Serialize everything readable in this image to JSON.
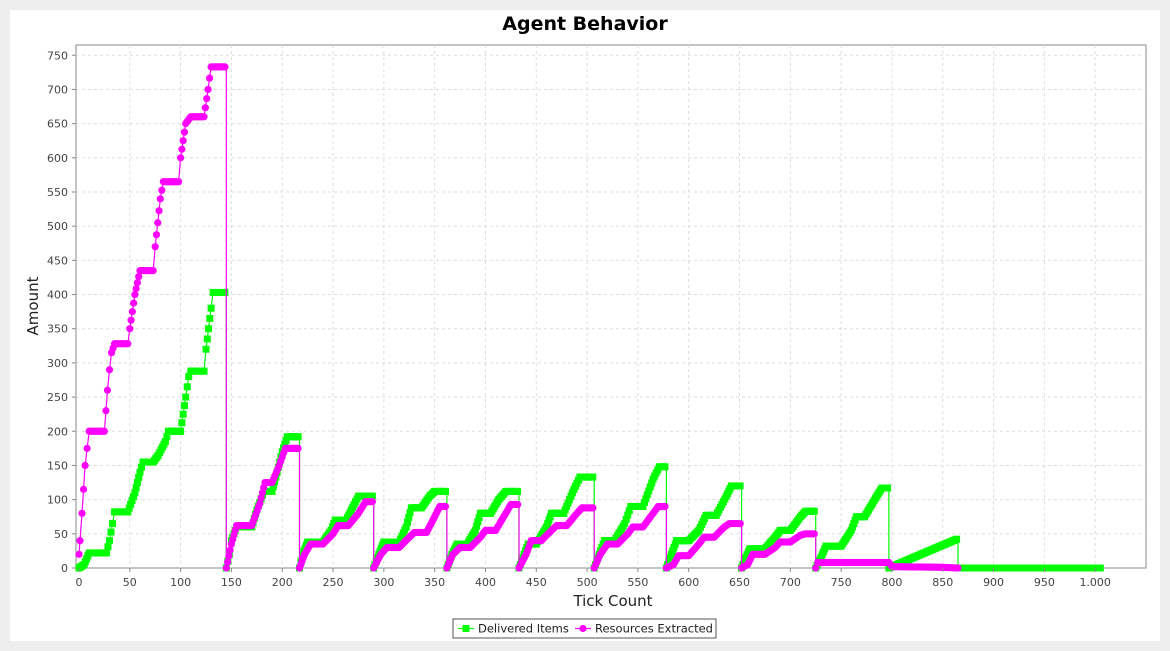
{
  "chart_data": {
    "type": "line",
    "title": "Agent Behavior",
    "xlabel": "Tick Count",
    "ylabel": "Amount",
    "xlim": [
      0,
      1050
    ],
    "ylim": [
      0,
      765
    ],
    "xticks": [
      0,
      50,
      100,
      150,
      200,
      250,
      300,
      350,
      400,
      450,
      500,
      550,
      600,
      650,
      700,
      750,
      800,
      850,
      900,
      950,
      1000
    ],
    "xtick_labels": [
      "0",
      "50",
      "100",
      "150",
      "200",
      "250",
      "300",
      "350",
      "400",
      "450",
      "500",
      "550",
      "600",
      "650",
      "700",
      "750",
      "800",
      "850",
      "900",
      "950",
      "1.000"
    ],
    "yticks": [
      0,
      50,
      100,
      150,
      200,
      250,
      300,
      350,
      400,
      450,
      500,
      550,
      600,
      650,
      700,
      750
    ],
    "grid": true,
    "legend": "bottom-center",
    "series": [
      {
        "name": "Delivered Items",
        "color": "#00ff00",
        "marker": "square",
        "points": [
          [
            0,
            0
          ],
          [
            5,
            5
          ],
          [
            10,
            22
          ],
          [
            20,
            22
          ],
          [
            27,
            22
          ],
          [
            30,
            40
          ],
          [
            33,
            65
          ],
          [
            35,
            82
          ],
          [
            48,
            82
          ],
          [
            55,
            110
          ],
          [
            60,
            140
          ],
          [
            63,
            155
          ],
          [
            73,
            155
          ],
          [
            78,
            165
          ],
          [
            85,
            185
          ],
          [
            88,
            200
          ],
          [
            100,
            200
          ],
          [
            105,
            250
          ],
          [
            108,
            280
          ],
          [
            110,
            288
          ],
          [
            123,
            288
          ],
          [
            125,
            320
          ],
          [
            130,
            380
          ],
          [
            132,
            403
          ],
          [
            145,
            403
          ],
          [
            145,
            0
          ],
          [
            148,
            20
          ],
          [
            150,
            40
          ],
          [
            155,
            60
          ],
          [
            170,
            60
          ],
          [
            175,
            85
          ],
          [
            182,
            112
          ],
          [
            190,
            112
          ],
          [
            195,
            140
          ],
          [
            200,
            170
          ],
          [
            205,
            192
          ],
          [
            217,
            192
          ],
          [
            217,
            0
          ],
          [
            220,
            20
          ],
          [
            225,
            38
          ],
          [
            240,
            38
          ],
          [
            248,
            55
          ],
          [
            252,
            70
          ],
          [
            263,
            70
          ],
          [
            268,
            85
          ],
          [
            275,
            105
          ],
          [
            290,
            105
          ],
          [
            290,
            0
          ],
          [
            295,
            20
          ],
          [
            300,
            38
          ],
          [
            315,
            38
          ],
          [
            322,
            60
          ],
          [
            327,
            88
          ],
          [
            337,
            88
          ],
          [
            345,
            105
          ],
          [
            350,
            112
          ],
          [
            362,
            112
          ],
          [
            362,
            0
          ],
          [
            367,
            20
          ],
          [
            372,
            35
          ],
          [
            382,
            35
          ],
          [
            390,
            55
          ],
          [
            395,
            80
          ],
          [
            405,
            80
          ],
          [
            413,
            100
          ],
          [
            420,
            112
          ],
          [
            433,
            112
          ],
          [
            433,
            0
          ],
          [
            438,
            20
          ],
          [
            442,
            35
          ],
          [
            450,
            35
          ],
          [
            460,
            60
          ],
          [
            465,
            80
          ],
          [
            477,
            80
          ],
          [
            487,
            115
          ],
          [
            493,
            133
          ],
          [
            507,
            133
          ],
          [
            507,
            0
          ],
          [
            512,
            20
          ],
          [
            517,
            40
          ],
          [
            527,
            40
          ],
          [
            537,
            65
          ],
          [
            543,
            90
          ],
          [
            555,
            90
          ],
          [
            565,
            130
          ],
          [
            571,
            148
          ],
          [
            578,
            148
          ],
          [
            578,
            0
          ],
          [
            583,
            20
          ],
          [
            588,
            40
          ],
          [
            600,
            40
          ],
          [
            610,
            55
          ],
          [
            617,
            77
          ],
          [
            627,
            77
          ],
          [
            637,
            105
          ],
          [
            642,
            120
          ],
          [
            652,
            120
          ],
          [
            652,
            0
          ],
          [
            656,
            15
          ],
          [
            660,
            28
          ],
          [
            675,
            28
          ],
          [
            685,
            45
          ],
          [
            690,
            55
          ],
          [
            700,
            55
          ],
          [
            710,
            75
          ],
          [
            715,
            83
          ],
          [
            725,
            83
          ],
          [
            725,
            0
          ],
          [
            730,
            15
          ],
          [
            735,
            32
          ],
          [
            750,
            32
          ],
          [
            760,
            55
          ],
          [
            765,
            75
          ],
          [
            773,
            75
          ],
          [
            785,
            105
          ],
          [
            790,
            117
          ],
          [
            797,
            117
          ],
          [
            797,
            0
          ],
          [
            865,
            43
          ],
          [
            865,
            0
          ],
          [
            1005,
            0
          ]
        ]
      },
      {
        "name": "Resources Extracted",
        "color": "#ff00ff",
        "marker": "circle",
        "points": [
          [
            0,
            20
          ],
          [
            1,
            40
          ],
          [
            3,
            80
          ],
          [
            6,
            150
          ],
          [
            8,
            175
          ],
          [
            10,
            200
          ],
          [
            25,
            200
          ],
          [
            28,
            260
          ],
          [
            30,
            290
          ],
          [
            32,
            315
          ],
          [
            35,
            328
          ],
          [
            48,
            328
          ],
          [
            50,
            350
          ],
          [
            55,
            400
          ],
          [
            60,
            435
          ],
          [
            73,
            435
          ],
          [
            75,
            470
          ],
          [
            80,
            540
          ],
          [
            83,
            565
          ],
          [
            98,
            565
          ],
          [
            100,
            600
          ],
          [
            105,
            650
          ],
          [
            110,
            660
          ],
          [
            123,
            660
          ],
          [
            127,
            700
          ],
          [
            130,
            733
          ],
          [
            145,
            733
          ],
          [
            145,
            0
          ],
          [
            150,
            35
          ],
          [
            155,
            62
          ],
          [
            170,
            62
          ],
          [
            178,
            95
          ],
          [
            183,
            125
          ],
          [
            190,
            125
          ],
          [
            197,
            150
          ],
          [
            203,
            175
          ],
          [
            217,
            175
          ],
          [
            217,
            0
          ],
          [
            222,
            20
          ],
          [
            228,
            35
          ],
          [
            240,
            35
          ],
          [
            250,
            50
          ],
          [
            255,
            62
          ],
          [
            265,
            62
          ],
          [
            275,
            80
          ],
          [
            282,
            97
          ],
          [
            290,
            97
          ],
          [
            290,
            0
          ],
          [
            297,
            20
          ],
          [
            303,
            30
          ],
          [
            315,
            30
          ],
          [
            325,
            45
          ],
          [
            330,
            52
          ],
          [
            342,
            52
          ],
          [
            350,
            75
          ],
          [
            355,
            90
          ],
          [
            362,
            90
          ],
          [
            362,
            0
          ],
          [
            368,
            20
          ],
          [
            375,
            30
          ],
          [
            385,
            30
          ],
          [
            395,
            45
          ],
          [
            400,
            55
          ],
          [
            410,
            55
          ],
          [
            420,
            80
          ],
          [
            425,
            93
          ],
          [
            433,
            93
          ],
          [
            433,
            0
          ],
          [
            440,
            20
          ],
          [
            445,
            40
          ],
          [
            455,
            40
          ],
          [
            465,
            55
          ],
          [
            470,
            62
          ],
          [
            480,
            62
          ],
          [
            490,
            80
          ],
          [
            495,
            88
          ],
          [
            507,
            88
          ],
          [
            507,
            0
          ],
          [
            513,
            20
          ],
          [
            520,
            35
          ],
          [
            530,
            35
          ],
          [
            540,
            50
          ],
          [
            545,
            60
          ],
          [
            555,
            60
          ],
          [
            565,
            80
          ],
          [
            570,
            90
          ],
          [
            578,
            90
          ],
          [
            578,
            0
          ],
          [
            585,
            5
          ],
          [
            590,
            18
          ],
          [
            600,
            18
          ],
          [
            610,
            35
          ],
          [
            615,
            45
          ],
          [
            625,
            45
          ],
          [
            635,
            60
          ],
          [
            640,
            65
          ],
          [
            652,
            65
          ],
          [
            652,
            0
          ],
          [
            658,
            5
          ],
          [
            663,
            20
          ],
          [
            675,
            20
          ],
          [
            685,
            30
          ],
          [
            690,
            38
          ],
          [
            700,
            38
          ],
          [
            710,
            48
          ],
          [
            715,
            50
          ],
          [
            725,
            50
          ],
          [
            725,
            0
          ],
          [
            727,
            8
          ],
          [
            797,
            8
          ],
          [
            800,
            2
          ],
          [
            850,
            1
          ],
          [
            865,
            0
          ]
        ]
      }
    ]
  }
}
